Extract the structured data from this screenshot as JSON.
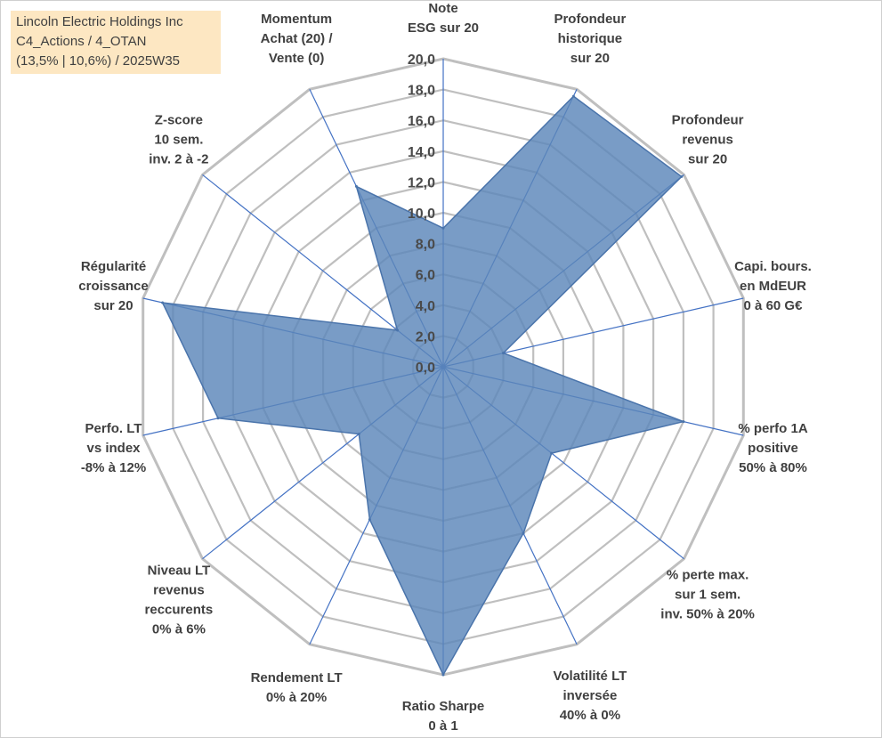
{
  "title_box": {
    "line1": "Lincoln Electric Holdings Inc",
    "line2": "C4_Actions / 4_OTAN",
    "line3": "(13,5% | 10,6%) / 2025W35"
  },
  "colors": {
    "fill": "#5b86b9",
    "stroke": "#4a74ab",
    "spoke": "#4472c4",
    "grid": "#bfbfbf",
    "title_bg": "#fde7c2"
  },
  "chart_data": {
    "type": "radar",
    "rlim": [
      0,
      20
    ],
    "r_ticks": [
      "0,0",
      "2,0",
      "4,0",
      "6,0",
      "8,0",
      "10,0",
      "12,0",
      "14,0",
      "16,0",
      "18,0",
      "20,0"
    ],
    "grid": true,
    "axes": [
      [
        "Note",
        "ESG sur 20"
      ],
      [
        "Profondeur",
        "historique",
        "sur 20"
      ],
      [
        "Profondeur",
        "revenus",
        "sur 20"
      ],
      [
        "Capi. bours.",
        "en MdEUR",
        "0 à 60 G€"
      ],
      [
        "% perfo 1A",
        "positive",
        "50% à 80%"
      ],
      [
        "% perte max.",
        "sur 1 sem.",
        "inv. 50% à 20%"
      ],
      [
        "Volatilité LT",
        "inversée",
        "40% à 0%"
      ],
      [
        "Ratio Sharpe",
        "0 à 1"
      ],
      [
        "Rendement LT",
        "0% à 20%"
      ],
      [
        "Niveau LT",
        "revenus",
        "reccurents",
        "0% à 6%"
      ],
      [
        "Perfo. LT",
        "vs index",
        "-8% à 12%"
      ],
      [
        "Régularité",
        "croissance",
        "sur 20"
      ],
      [
        "Z-score",
        "10 sem.",
        "inv. 2 à -2"
      ],
      [
        "Momentum",
        "Achat (20) /",
        "Vente (0)"
      ]
    ],
    "series": [
      {
        "values": [
          9.0,
          19.5,
          19.8,
          4.0,
          16.0,
          9.0,
          12.0,
          20.0,
          11.0,
          7.0,
          15.0,
          18.7,
          3.8,
          13.0
        ]
      }
    ]
  }
}
